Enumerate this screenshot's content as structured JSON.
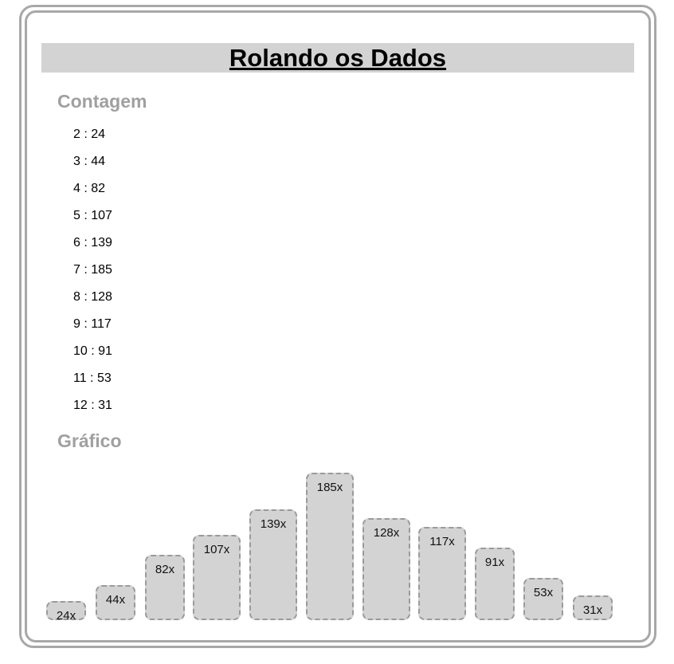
{
  "title": "Rolando os Dados",
  "contagem": {
    "heading": "Contagem",
    "items": [
      {
        "face": "2",
        "count": "24"
      },
      {
        "face": "3",
        "count": "44"
      },
      {
        "face": "4",
        "count": "82"
      },
      {
        "face": "5",
        "count": "107"
      },
      {
        "face": "6",
        "count": "139"
      },
      {
        "face": "7",
        "count": "185"
      },
      {
        "face": "8",
        "count": "128"
      },
      {
        "face": "9",
        "count": "117"
      },
      {
        "face": "10",
        "count": "91"
      },
      {
        "face": "11",
        "count": "53"
      },
      {
        "face": "12",
        "count": "31"
      }
    ]
  },
  "grafico": {
    "heading": "Gráfico"
  },
  "chart_data": {
    "type": "bar",
    "categories": [
      "2",
      "3",
      "4",
      "5",
      "6",
      "7",
      "8",
      "9",
      "10",
      "11",
      "12"
    ],
    "values": [
      24,
      44,
      82,
      107,
      139,
      185,
      128,
      117,
      91,
      53,
      31
    ],
    "data_labels": [
      "24x",
      "44x",
      "82x",
      "107x",
      "139x",
      "185x",
      "128x",
      "117x",
      "91x",
      "53x",
      "31x"
    ],
    "ylim": [
      0,
      185
    ],
    "grid": false,
    "colors": {
      "bar_fill": "#d3d3d3",
      "bar_border": "#9a9a9a"
    }
  }
}
